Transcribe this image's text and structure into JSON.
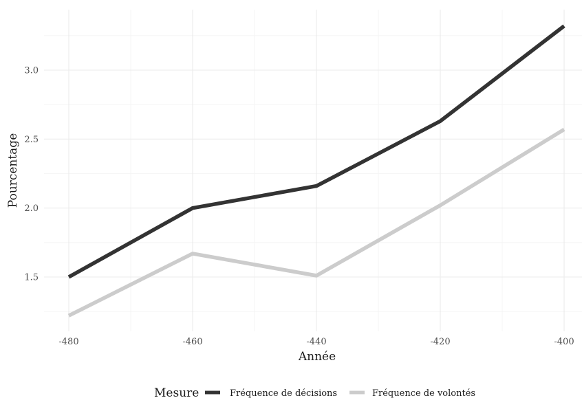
{
  "chart_data": {
    "type": "line",
    "x": [
      -480,
      -460,
      -440,
      -420,
      -400
    ],
    "series": [
      {
        "name": "Fréquence de décisions",
        "values": [
          1.5,
          2.0,
          2.16,
          2.63,
          3.32
        ],
        "color": "#333333"
      },
      {
        "name": "Fréquence de volontés",
        "values": [
          1.22,
          1.67,
          1.51,
          2.02,
          2.57
        ],
        "color": "#cccccc"
      }
    ],
    "xlabel": "Année",
    "ylabel": "Pourcentage",
    "xlim": [
      -482,
      -398
    ],
    "ylim": [
      1.13,
      3.42
    ],
    "x_ticks": [
      -480,
      -460,
      -440,
      -420,
      -400
    ],
    "x_tick_labels": [
      "-480",
      "-460",
      "-440",
      "-420",
      "-400"
    ],
    "y_ticks": [
      1.5,
      2.0,
      2.5,
      3.0
    ],
    "y_tick_labels": [
      "1.5",
      "2.0",
      "2.5",
      "3.0"
    ],
    "grid": true,
    "legend": {
      "title": "Mesure",
      "position": "bottom"
    }
  }
}
